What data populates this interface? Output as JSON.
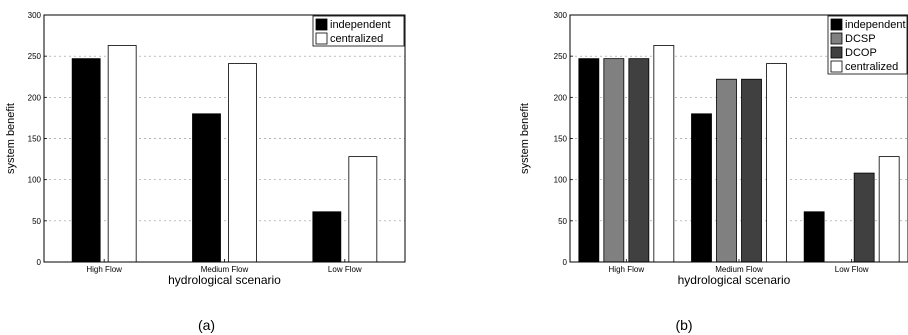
{
  "chart_data": [
    {
      "type": "bar",
      "caption": "(a)",
      "categories": [
        "High Flow",
        "Medium Flow",
        "Low Flow"
      ],
      "series": [
        {
          "name": "independent",
          "values": [
            247,
            180,
            61
          ],
          "color": "#000000"
        },
        {
          "name": "centralized",
          "values": [
            263,
            241,
            128
          ],
          "color": "#ffffff"
        }
      ],
      "xlabel": "hydrological scenario",
      "ylabel": "system benefit",
      "ylim": [
        0,
        300
      ],
      "yticks": [
        "0",
        "50",
        "100",
        "150",
        "200",
        "250",
        "300"
      ],
      "grid": "horizontal-dashed",
      "legend": "top-right"
    },
    {
      "type": "bar",
      "caption": "(b)",
      "categories": [
        "High Flow",
        "Medium Flow",
        "Low Flow"
      ],
      "series": [
        {
          "name": "independent",
          "values": [
            247,
            180,
            61
          ],
          "color": "#000000"
        },
        {
          "name": "DCSP",
          "values": [
            247,
            222,
            0
          ],
          "color": "#808080"
        },
        {
          "name": "DCOP",
          "values": [
            247,
            222,
            108
          ],
          "color": "#404040"
        },
        {
          "name": "centralized",
          "values": [
            263,
            241,
            128
          ],
          "color": "#ffffff"
        }
      ],
      "xlabel": "hydrological scenario",
      "ylabel": "system benefit",
      "ylim": [
        0,
        300
      ],
      "yticks": [
        "0",
        "50",
        "100",
        "150",
        "200",
        "250",
        "300"
      ],
      "grid": "horizontal-dashed",
      "legend": "top-right"
    }
  ]
}
